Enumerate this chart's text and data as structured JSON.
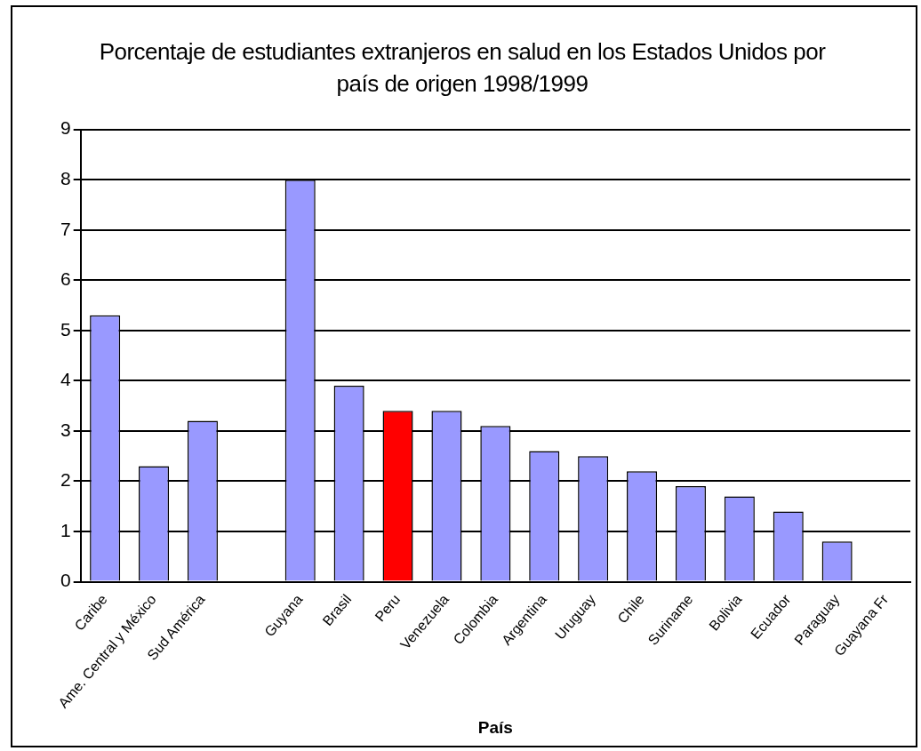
{
  "chart_data": {
    "type": "bar",
    "title": "Porcentaje de estudiantes extranjeros en salud en los Estados Unidos por país de origen 1998/1999",
    "xlabel": "País",
    "categories": [
      "Caribe",
      "Ame. Central y México",
      "Sud América",
      null,
      "Guyana",
      "Brasil",
      "Peru",
      "Venezuela",
      "Colombia",
      "Argentina",
      "Uruguay",
      "Chile",
      "Suriname",
      "Bolivia",
      "Ecuador",
      "Paraguay",
      "Guayana Fr"
    ],
    "values": [
      5.3,
      2.3,
      3.2,
      null,
      8.0,
      3.9,
      3.4,
      3.4,
      3.1,
      2.6,
      2.5,
      2.2,
      1.9,
      1.7,
      1.4,
      0.8,
      0
    ],
    "colors": [
      "#9999ff",
      "#9999ff",
      "#9999ff",
      "#9999ff",
      "#9999ff",
      "#9999ff",
      "#ff0000",
      "#9999ff",
      "#9999ff",
      "#9999ff",
      "#9999ff",
      "#9999ff",
      "#9999ff",
      "#9999ff",
      "#9999ff",
      "#9999ff",
      "#9999ff"
    ],
    "ylim": [
      0,
      9
    ],
    "yticks": [
      0,
      1,
      2,
      3,
      4,
      5,
      6,
      7,
      8,
      9
    ],
    "grid": "y",
    "legend": false
  }
}
